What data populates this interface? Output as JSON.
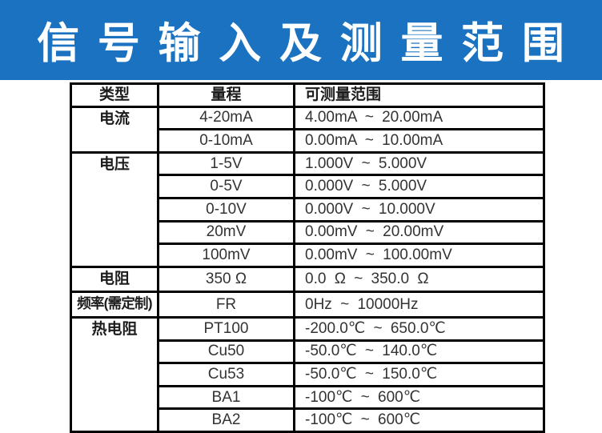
{
  "banner": {
    "title": "信 号 输 入 及 测 量 范 围",
    "background_color": "#1a72c0",
    "text_color": "#ffffff"
  },
  "table": {
    "border_color": "#000000",
    "headers": [
      "类型",
      "量程",
      "可测量范围"
    ],
    "groups": [
      {
        "type": "电流",
        "rows": [
          {
            "range": "4-20mA",
            "measurable": "4.00mA ~ 20.00mA"
          },
          {
            "range": "0-10mA",
            "measurable": "0.00mA ~ 10.00mA"
          }
        ]
      },
      {
        "type": "电压",
        "rows": [
          {
            "range": "1-5V",
            "measurable": "1.000V ~ 5.000V"
          },
          {
            "range": "0-5V",
            "measurable": "0.000V ~ 5.000V"
          },
          {
            "range": "0-10V",
            "measurable": "0.000V ~ 10.000V"
          },
          {
            "range": "20mV",
            "measurable": "0.00mV ~ 20.00mV"
          },
          {
            "range": "100mV",
            "measurable": "0.00mV ~ 100.00mV"
          }
        ]
      },
      {
        "type": "电阻",
        "rows": [
          {
            "range": "350 Ω",
            "measurable": "0.0 Ω ~ 350.0 Ω"
          }
        ]
      },
      {
        "type": "频率(需定制)",
        "rows": [
          {
            "range": "FR",
            "measurable": "0Hz ~ 10000Hz"
          }
        ]
      },
      {
        "type": "热电阻",
        "rows": [
          {
            "range": "PT100",
            "measurable": "-200.0℃ ~ 650.0℃"
          },
          {
            "range": "Cu50",
            "measurable": "-50.0℃ ~ 140.0℃"
          },
          {
            "range": "Cu53",
            "measurable": "-50.0℃ ~ 150.0℃"
          },
          {
            "range": "BA1",
            "measurable": "-100℃ ~ 600℃"
          },
          {
            "range": "BA2",
            "measurable": "-100℃ ~ 600℃"
          }
        ]
      }
    ]
  }
}
